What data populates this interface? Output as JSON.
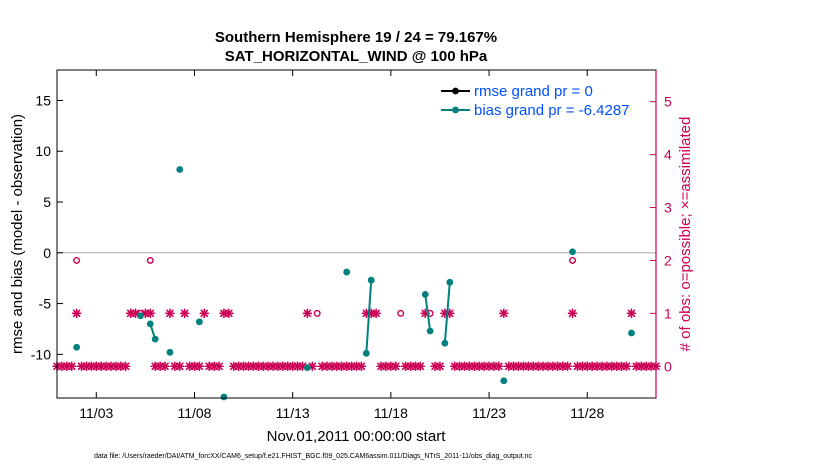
{
  "colors": {
    "rmse": "#000000",
    "bias": "#00807f",
    "obs": "#cc0055",
    "zero_line": "#c8b4b4",
    "legend_text": "#0050ff",
    "axis": "#000000"
  },
  "chart_data": {
    "type": "line",
    "title_line1": "Southern Hemisphere 19 / 24 = 79.167%",
    "title_line2": "SAT_HORIZONTAL_WIND @ 100 hPa",
    "xlabel": "Nov.01,2011 00:00:00 start",
    "ylabel_left": "rmse and bias (model - observation)",
    "ylabel_right": "# of obs: o=possible; ×=assimilated",
    "xlim": [
      0.0,
      30.5
    ],
    "ylim_left": [
      -14.3,
      18
    ],
    "ylim_right": [
      -0.6,
      5.6
    ],
    "x_ticks": [
      2,
      7,
      12,
      17,
      22,
      27
    ],
    "x_tick_labels": [
      "11/03",
      "11/08",
      "11/13",
      "11/18",
      "11/23",
      "11/28"
    ],
    "y_ticks_left": [
      -10,
      -5,
      0,
      5,
      10,
      15
    ],
    "y_tick_labels_left": [
      "-10",
      "-5",
      "0",
      "5",
      "10",
      "15"
    ],
    "y_ticks_right": [
      0,
      1,
      2,
      3,
      4,
      5
    ],
    "y_tick_labels_right": [
      "0",
      "1",
      "2",
      "3",
      "4",
      "5"
    ],
    "legend_placement": "top-right",
    "series": [
      {
        "name": "rmse grand pr = 0",
        "axis": "left",
        "values": []
      },
      {
        "name": "bias grand pr = -6.4287",
        "axis": "left",
        "segments": [
          [
            [
              1.0,
              -9.3
            ]
          ],
          [
            [
              4.25,
              -6.2
            ]
          ],
          [
            [
              4.75,
              -7.0
            ],
            [
              5.0,
              -8.5
            ]
          ],
          [
            [
              5.75,
              -9.8
            ]
          ],
          [
            [
              6.25,
              8.2
            ]
          ],
          [
            [
              7.25,
              -6.8
            ]
          ],
          [
            [
              8.5,
              -14.2
            ]
          ],
          [
            [
              12.75,
              -11.3
            ]
          ],
          [
            [
              14.75,
              -1.9
            ]
          ],
          [
            [
              15.75,
              -9.9
            ],
            [
              16.0,
              -2.7
            ]
          ],
          [
            [
              18.75,
              -4.1
            ],
            [
              19.0,
              -7.7
            ]
          ],
          [
            [
              19.75,
              -8.9
            ],
            [
              20.0,
              -2.9
            ]
          ],
          [
            [
              22.75,
              -12.6
            ]
          ],
          [
            [
              26.25,
              0.1
            ]
          ],
          [
            [
              29.25,
              -7.9
            ]
          ]
        ]
      }
    ],
    "obs_possible": [
      {
        "x": 1.0,
        "n": 2
      },
      {
        "x": 4.25,
        "n": 1
      },
      {
        "x": 4.75,
        "n": 2
      },
      {
        "x": 13.25,
        "n": 1
      },
      {
        "x": 17.5,
        "n": 1
      },
      {
        "x": 19.0,
        "n": 1
      },
      {
        "x": 26.25,
        "n": 2
      }
    ],
    "obs_assimilated": [
      {
        "x": 1.0,
        "n": 1
      },
      {
        "x": 3.75,
        "n": 1
      },
      {
        "x": 4.0,
        "n": 1
      },
      {
        "x": 4.5,
        "n": 1
      },
      {
        "x": 4.75,
        "n": 1
      },
      {
        "x": 5.75,
        "n": 1
      },
      {
        "x": 6.5,
        "n": 1
      },
      {
        "x": 7.5,
        "n": 1
      },
      {
        "x": 8.5,
        "n": 1
      },
      {
        "x": 8.75,
        "n": 1
      },
      {
        "x": 12.75,
        "n": 1
      },
      {
        "x": 15.75,
        "n": 1
      },
      {
        "x": 16.0,
        "n": 1
      },
      {
        "x": 16.25,
        "n": 1
      },
      {
        "x": 18.75,
        "n": 1
      },
      {
        "x": 19.75,
        "n": 1
      },
      {
        "x": 20.0,
        "n": 1
      },
      {
        "x": 22.75,
        "n": 1
      },
      {
        "x": 26.25,
        "n": 1
      },
      {
        "x": 29.25,
        "n": 1
      }
    ],
    "obs_zero_start": 0.0,
    "obs_zero_step": 0.25,
    "obs_zero_end": 30.5
  },
  "footer_text": "data file: /Users/raeder/DAI/ATM_forcXX/CAM6_setup/f.e21.FHIST_BGC.f09_025.CAM6assim.011/Diags_NTrS_2011-11/obs_diag_output.nc"
}
